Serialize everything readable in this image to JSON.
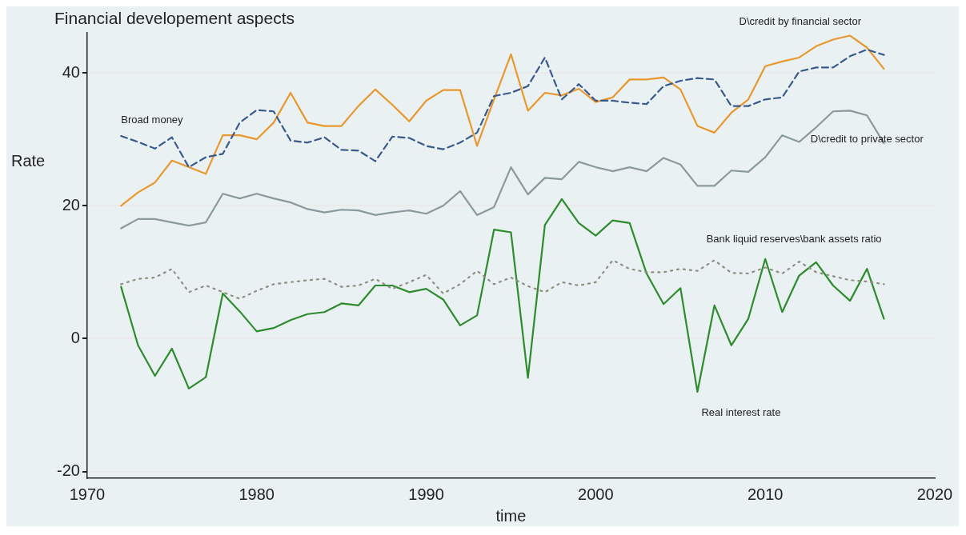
{
  "chart_data": {
    "type": "line",
    "title": "Financial developement aspects",
    "xlabel": "time",
    "ylabel": "Rate",
    "x": [
      1972,
      1973,
      1974,
      1975,
      1976,
      1977,
      1978,
      1979,
      1980,
      1981,
      1982,
      1983,
      1984,
      1985,
      1986,
      1987,
      1988,
      1989,
      1990,
      1991,
      1992,
      1993,
      1994,
      1995,
      1996,
      1997,
      1998,
      1999,
      2000,
      2001,
      2002,
      2003,
      2004,
      2005,
      2006,
      2007,
      2008,
      2009,
      2010,
      2011,
      2012,
      2013,
      2014,
      2015,
      2016,
      2017
    ],
    "series": [
      {
        "name": "Broad money",
        "color": "#3a5a8c",
        "line_style": "dashed",
        "values": [
          30.5,
          29.6,
          28.6,
          30.3,
          25.8,
          27.3,
          27.8,
          32.5,
          34.4,
          34.2,
          29.8,
          29.5,
          30.3,
          28.4,
          28.3,
          26.7,
          30.4,
          30.2,
          29,
          28.5,
          29.5,
          31,
          36.5,
          37,
          38,
          42.3,
          36,
          38.3,
          35.8,
          35.8,
          35.5,
          35.3,
          38,
          38.8,
          39.2,
          39,
          35,
          35,
          36,
          36.3,
          40.2,
          40.8,
          40.8,
          42.5,
          43.5,
          42.7
        ]
      },
      {
        "name": "D\\credit by financial sector",
        "color": "#e8982e",
        "line_style": "solid",
        "values": [
          20,
          22,
          23.5,
          26.8,
          25.8,
          24.8,
          30.6,
          30.6,
          30,
          32.5,
          37,
          32.5,
          32,
          32,
          35,
          37.5,
          35.2,
          32.7,
          35.8,
          37.4,
          37.4,
          29,
          36,
          42.8,
          34.3,
          37,
          36.6,
          37.6,
          35.6,
          36.3,
          39,
          39,
          39.3,
          37.5,
          32,
          31,
          34,
          36,
          41,
          41.7,
          42.3,
          44,
          45,
          45.6,
          43.8,
          40.6
        ]
      },
      {
        "name": "D\\credit to private sector",
        "color": "#8a9a9a",
        "line_style": "solid",
        "values": [
          16.6,
          18,
          18,
          17.5,
          17,
          17.5,
          21.8,
          21.1,
          21.8,
          21.1,
          20.5,
          19.5,
          19,
          19.4,
          19.3,
          18.6,
          19,
          19.3,
          18.8,
          20,
          22.2,
          18.6,
          19.8,
          25.8,
          21.7,
          24.2,
          24,
          26.6,
          25.8,
          25.2,
          25.8,
          25.2,
          27.2,
          26.2,
          23,
          23,
          25.3,
          25.1,
          27.3,
          30.6,
          29.6,
          31.8,
          34.2,
          34.3,
          33.6,
          29.4
        ]
      },
      {
        "name": "Bank liquid reserves\\bank assets ratio",
        "color": "#8f8f80",
        "line_style": "dotted",
        "values": [
          8.2,
          9,
          9.2,
          10.5,
          7,
          8,
          7,
          6,
          7.2,
          8.2,
          8.5,
          8.8,
          9,
          7.8,
          8,
          9,
          7.5,
          8.5,
          9.6,
          6.8,
          8.2,
          10.2,
          8.2,
          9.2,
          7.9,
          7,
          8.5,
          8,
          8.5,
          11.8,
          10.5,
          10,
          10,
          10.5,
          10.2,
          11.8,
          9.9,
          9.8,
          10.7,
          9.8,
          11.6,
          10,
          9.4,
          8.8,
          8.6,
          8.2
        ]
      },
      {
        "name": "Real interest rate",
        "color": "#2e8b2e",
        "line_style": "solid",
        "values": [
          7.8,
          -1,
          -5.6,
          -1.5,
          -7.5,
          -5.8,
          6.8,
          4.1,
          1.1,
          1.6,
          2.8,
          3.7,
          4,
          5.3,
          5,
          8,
          8,
          7,
          7.5,
          5.9,
          2,
          3.5,
          16.4,
          16,
          -5.9,
          17.1,
          21,
          17.4,
          15.5,
          17.8,
          17.4,
          9.8,
          5.2,
          7.6,
          -8,
          5,
          -1,
          3,
          12,
          4,
          9.5,
          11.5,
          8,
          5.7,
          10.5,
          3
        ]
      }
    ],
    "xlim": [
      1970,
      2020
    ],
    "xticks": [
      1970,
      1980,
      1990,
      2000,
      2010,
      2020
    ],
    "ylim": [
      -21,
      46
    ],
    "yticks": [
      -20,
      0,
      20,
      40
    ],
    "grid": "y",
    "legend": false,
    "marker": "none"
  }
}
